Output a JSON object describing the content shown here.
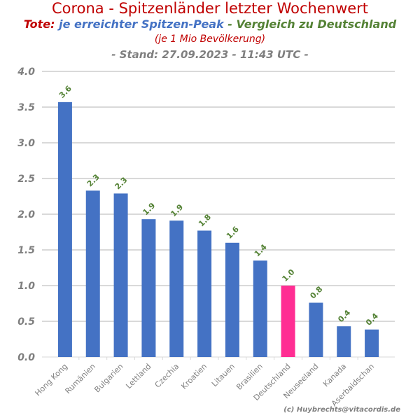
{
  "header": {
    "title": "Corona - Spitzenländer letzter Wochenwert",
    "subtitle_part1": "Tote:",
    "subtitle_part2": " je erreichter Spitzen-Peak",
    "subtitle_part3": " - Vergleich zu Deutschland",
    "subtitle2": "(je 1 Mio Bevölkerung)",
    "stand": "- Stand: 27.09.2023 - 11:43 UTC -"
  },
  "colors": {
    "title": "#c00000",
    "blue_text": "#4472c4",
    "green_text": "#548235",
    "bar": "#4472c4",
    "highlight_bar": "#ff2e93",
    "grid": "#d9d9d9"
  },
  "credit": "(c) Huybrechts@vitacordis.de",
  "chart_data": {
    "type": "bar",
    "title": "Corona - Spitzenländer letzter Wochenwert",
    "xlabel": "",
    "ylabel": "",
    "ylim": [
      0,
      4.0
    ],
    "yticks": [
      "0.0",
      "0.5",
      "1.0",
      "1.5",
      "2.0",
      "2.5",
      "3.0",
      "3.5",
      "4.0"
    ],
    "grid": true,
    "categories": [
      "Hong Kong",
      "Rumänien",
      "Bulgarien",
      "Lettland",
      "Czechia",
      "Kroatien",
      "Litauen",
      "Brasilien",
      "Deutschland",
      "Neuseeland",
      "Kanada",
      "Aserbaidschan"
    ],
    "values": [
      3.57,
      2.33,
      2.29,
      1.93,
      1.91,
      1.77,
      1.6,
      1.35,
      1.0,
      0.76,
      0.43,
      0.385
    ],
    "data_labels": [
      "3.6",
      "2.3",
      "2.3",
      "1.9",
      "1.9",
      "1.8",
      "1.6",
      "1.4",
      "1.0",
      "0.8",
      "0.4",
      "0.4"
    ],
    "highlight": "Deutschland"
  }
}
